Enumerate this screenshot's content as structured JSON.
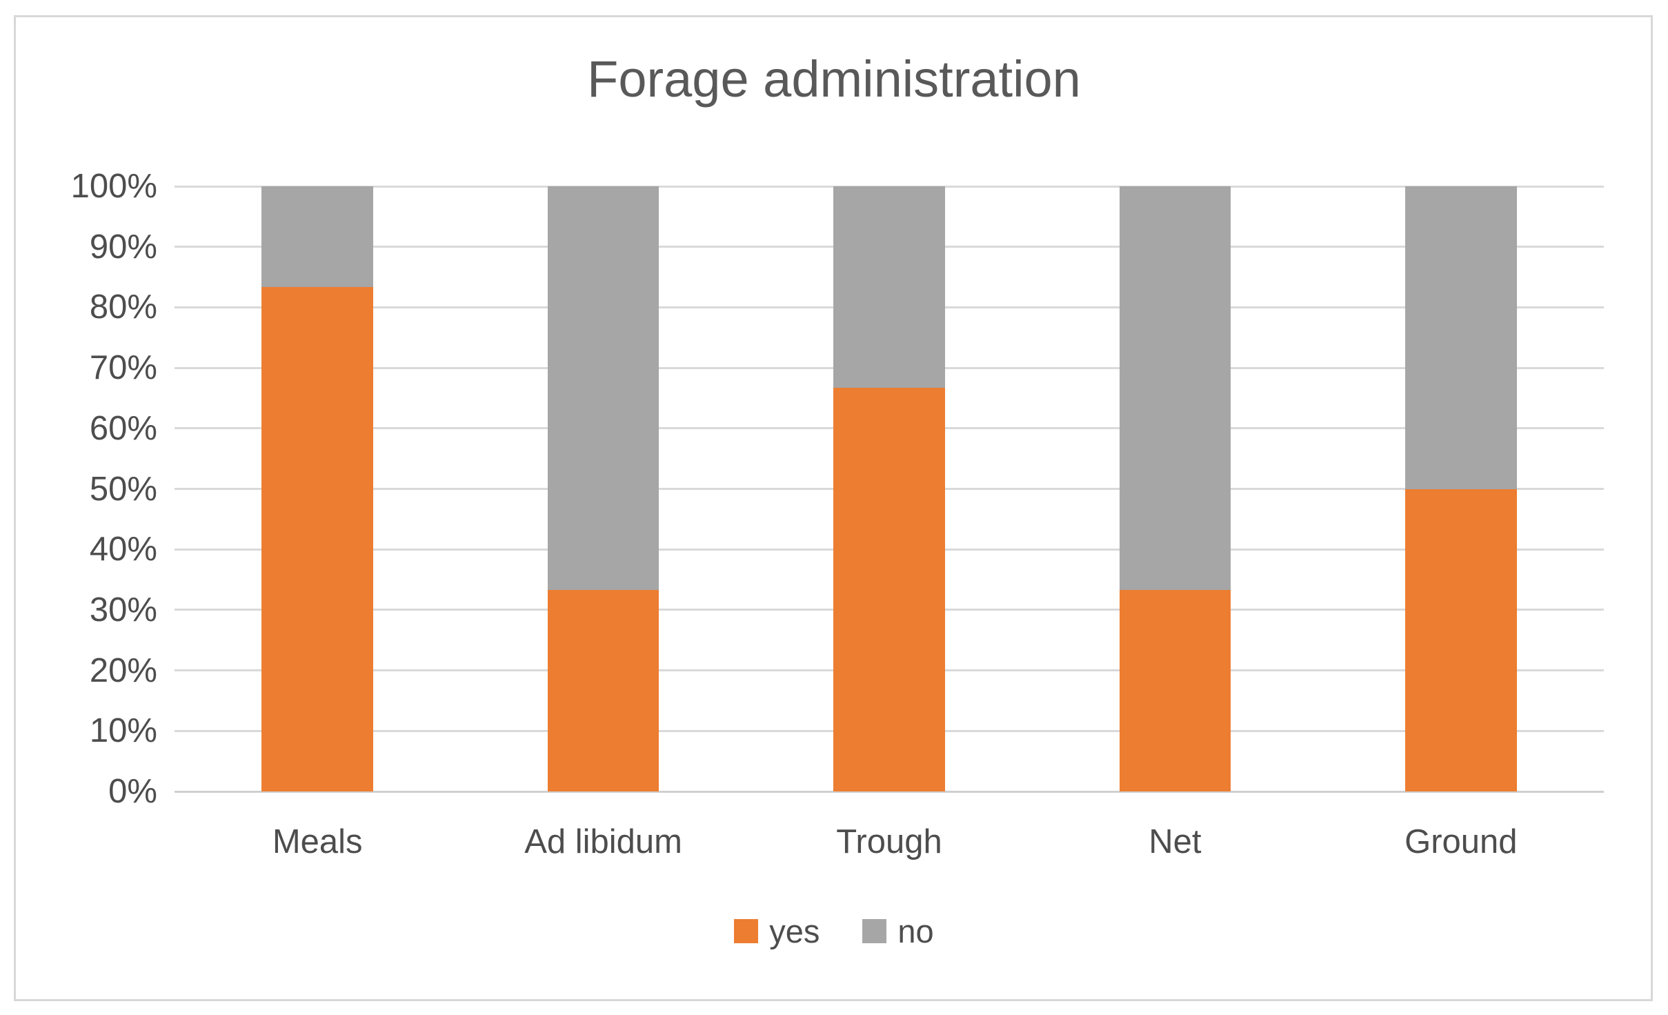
{
  "chart_data": {
    "type": "bar",
    "subtype": "stacked-100-percent-column",
    "title": "Forage administration",
    "categories": [
      "Meals",
      "Ad libidum",
      "Trough",
      "Net",
      "Ground"
    ],
    "series": [
      {
        "name": "yes",
        "color": "#ED7D31",
        "values": [
          83.3,
          33.3,
          66.7,
          33.3,
          50
        ]
      },
      {
        "name": "no",
        "color": "#A6A6A6",
        "values": [
          16.7,
          66.7,
          33.3,
          66.7,
          50
        ]
      }
    ],
    "y_axis": {
      "min": 0,
      "max": 100,
      "step": 10,
      "tick_labels": [
        "0%",
        "10%",
        "20%",
        "30%",
        "40%",
        "50%",
        "60%",
        "70%",
        "80%",
        "90%",
        "100%"
      ]
    },
    "xlabel": "",
    "ylabel": "",
    "grid": true,
    "gridline_color": "#D9D9D9",
    "legend_position": "bottom",
    "title_color": "#595959",
    "text_color": "#4D4D4D",
    "frame_border_color": "#D8D8D8"
  }
}
